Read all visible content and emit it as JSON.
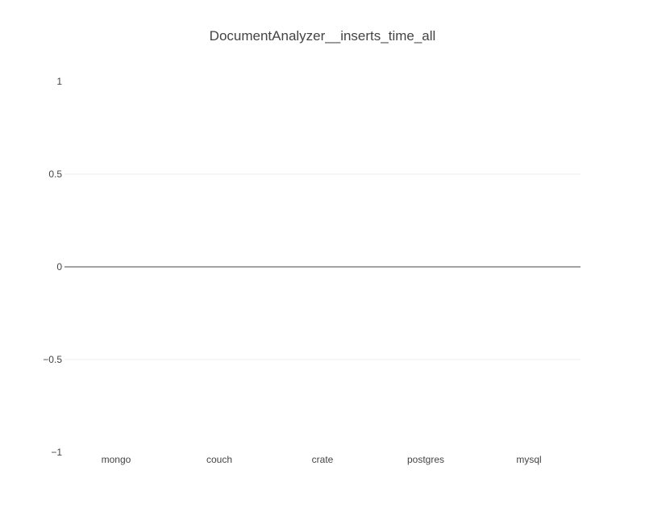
{
  "chart_data": {
    "type": "bar",
    "title": "DocumentAnalyzer__inserts_time_all",
    "xlabel": "",
    "ylabel": "",
    "categories": [
      "mongo",
      "couch",
      "crate",
      "postgres",
      "mysql"
    ],
    "series": [
      {
        "values": [
          0,
          0,
          0,
          0,
          0
        ]
      }
    ],
    "yticks": [
      -1,
      -0.5,
      0,
      0.5,
      1
    ],
    "ytick_labels": [
      "−1",
      "−0.5",
      "0",
      "0.5",
      "1"
    ],
    "ylim": [
      -1,
      1
    ],
    "grid": true,
    "legend": "none",
    "colors": {
      "text": "#444444",
      "grid": "#eeeeee",
      "zero_line": "#444444",
      "bar": "#1f77b4"
    }
  }
}
